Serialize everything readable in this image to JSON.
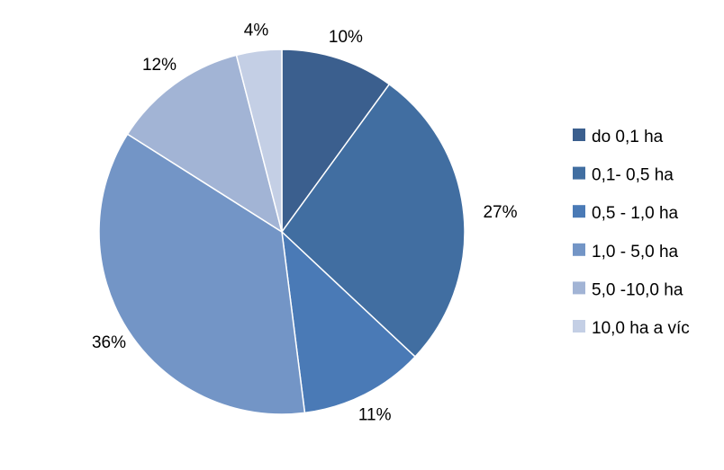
{
  "chart_data": {
    "type": "pie",
    "title": "",
    "categories": [
      "do 0,1 ha",
      "0,1- 0,5 ha",
      "0,5 - 1,0 ha",
      "1,0 - 5,0 ha",
      "5,0 -10,0 ha",
      "10,0 ha a víc"
    ],
    "values": [
      10,
      27,
      11,
      36,
      12,
      4
    ],
    "value_labels": [
      "10%",
      "27%",
      "11%",
      "36%",
      "12%",
      "4%"
    ],
    "colors": [
      "#3b5f8e",
      "#416ea1",
      "#4a7ab6",
      "#7395c6",
      "#a2b4d5",
      "#c4cfe5"
    ],
    "legend_position": "right"
  }
}
